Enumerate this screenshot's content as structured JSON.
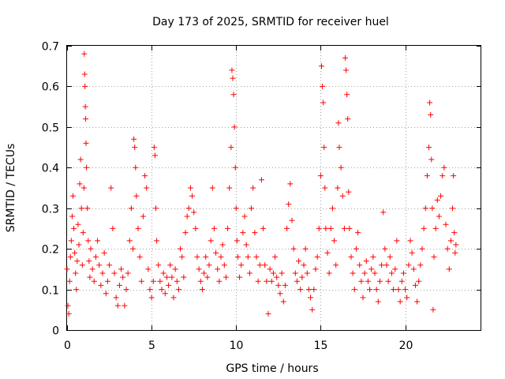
{
  "chart_data": {
    "type": "scatter",
    "title": "Day 173 of 2025, SRMTID for receiver huel",
    "xlabel": "GPS time / hours",
    "ylabel": "SRMTID / TECUs",
    "xlim": [
      0,
      24.5
    ],
    "ylim": [
      0,
      0.7
    ],
    "xticks": [
      0,
      5,
      10,
      15,
      20
    ],
    "xtick_labels": [
      "0",
      "5",
      "10",
      "15",
      "20"
    ],
    "yticks": [
      0,
      0.1,
      0.2,
      0.3,
      0.4,
      0.5,
      0.6,
      0.7
    ],
    "ytick_labels": [
      "0",
      "0.1",
      "0.2",
      "0.3",
      "0.4",
      "0.5",
      "0.6",
      "0.7"
    ],
    "grid": true,
    "marker": "+",
    "marker_color": "#ff0000",
    "series": [
      {
        "name": "SRMTID",
        "points": [
          [
            0.0,
            0.15
          ],
          [
            0.05,
            0.06
          ],
          [
            0.1,
            0.04
          ],
          [
            0.15,
            0.12
          ],
          [
            0.2,
            0.18
          ],
          [
            0.25,
            0.22
          ],
          [
            0.3,
            0.28
          ],
          [
            0.35,
            0.33
          ],
          [
            0.4,
            0.25
          ],
          [
            0.45,
            0.19
          ],
          [
            0.5,
            0.14
          ],
          [
            0.55,
            0.1
          ],
          [
            0.6,
            0.17
          ],
          [
            0.65,
            0.26
          ],
          [
            0.7,
            0.21
          ],
          [
            0.75,
            0.36
          ],
          [
            0.8,
            0.42
          ],
          [
            0.85,
            0.3
          ],
          [
            0.9,
            0.16
          ],
          [
            0.95,
            0.24
          ],
          [
            1.0,
            0.35
          ],
          [
            1.02,
            0.68
          ],
          [
            1.04,
            0.63
          ],
          [
            1.06,
            0.6
          ],
          [
            1.08,
            0.55
          ],
          [
            1.1,
            0.52
          ],
          [
            1.12,
            0.46
          ],
          [
            1.15,
            0.4
          ],
          [
            1.2,
            0.3
          ],
          [
            1.25,
            0.22
          ],
          [
            1.3,
            0.17
          ],
          [
            1.35,
            0.13
          ],
          [
            1.4,
            0.2
          ],
          [
            1.5,
            0.15
          ],
          [
            1.6,
            0.12
          ],
          [
            1.7,
            0.18
          ],
          [
            1.8,
            0.22
          ],
          [
            1.9,
            0.16
          ],
          [
            2.0,
            0.11
          ],
          [
            2.1,
            0.14
          ],
          [
            2.2,
            0.19
          ],
          [
            2.3,
            0.09
          ],
          [
            2.4,
            0.12
          ],
          [
            2.5,
            0.16
          ],
          [
            2.6,
            0.35
          ],
          [
            2.7,
            0.25
          ],
          [
            2.8,
            0.14
          ],
          [
            2.9,
            0.08
          ],
          [
            3.0,
            0.06
          ],
          [
            3.1,
            0.11
          ],
          [
            3.2,
            0.15
          ],
          [
            3.3,
            0.13
          ],
          [
            3.4,
            0.06
          ],
          [
            3.5,
            0.1
          ],
          [
            3.6,
            0.14
          ],
          [
            3.7,
            0.22
          ],
          [
            3.8,
            0.3
          ],
          [
            3.9,
            0.2
          ],
          [
            3.95,
            0.47
          ],
          [
            4.0,
            0.45
          ],
          [
            4.05,
            0.4
          ],
          [
            4.1,
            0.33
          ],
          [
            4.2,
            0.25
          ],
          [
            4.3,
            0.18
          ],
          [
            4.4,
            0.12
          ],
          [
            4.5,
            0.28
          ],
          [
            4.6,
            0.38
          ],
          [
            4.7,
            0.35
          ],
          [
            4.8,
            0.15
          ],
          [
            4.9,
            0.1
          ],
          [
            5.0,
            0.08
          ],
          [
            5.1,
            0.12
          ],
          [
            5.15,
            0.45
          ],
          [
            5.2,
            0.43
          ],
          [
            5.25,
            0.3
          ],
          [
            5.3,
            0.22
          ],
          [
            5.4,
            0.16
          ],
          [
            5.5,
            0.12
          ],
          [
            5.6,
            0.1
          ],
          [
            5.7,
            0.14
          ],
          [
            5.8,
            0.09
          ],
          [
            5.9,
            0.13
          ],
          [
            6.0,
            0.11
          ],
          [
            6.1,
            0.16
          ],
          [
            6.2,
            0.13
          ],
          [
            6.3,
            0.08
          ],
          [
            6.4,
            0.15
          ],
          [
            6.5,
            0.12
          ],
          [
            6.6,
            0.1
          ],
          [
            6.7,
            0.2
          ],
          [
            6.8,
            0.18
          ],
          [
            6.9,
            0.13
          ],
          [
            7.0,
            0.24
          ],
          [
            7.1,
            0.28
          ],
          [
            7.2,
            0.3
          ],
          [
            7.3,
            0.35
          ],
          [
            7.4,
            0.33
          ],
          [
            7.5,
            0.29
          ],
          [
            7.6,
            0.25
          ],
          [
            7.7,
            0.18
          ],
          [
            7.8,
            0.15
          ],
          [
            7.9,
            0.12
          ],
          [
            8.0,
            0.1
          ],
          [
            8.1,
            0.14
          ],
          [
            8.2,
            0.18
          ],
          [
            8.3,
            0.13
          ],
          [
            8.4,
            0.16
          ],
          [
            8.5,
            0.22
          ],
          [
            8.6,
            0.35
          ],
          [
            8.7,
            0.25
          ],
          [
            8.8,
            0.19
          ],
          [
            8.9,
            0.15
          ],
          [
            9.0,
            0.12
          ],
          [
            9.1,
            0.18
          ],
          [
            9.2,
            0.21
          ],
          [
            9.3,
            0.16
          ],
          [
            9.4,
            0.13
          ],
          [
            9.5,
            0.25
          ],
          [
            9.6,
            0.35
          ],
          [
            9.7,
            0.45
          ],
          [
            9.75,
            0.64
          ],
          [
            9.8,
            0.62
          ],
          [
            9.85,
            0.58
          ],
          [
            9.9,
            0.5
          ],
          [
            9.95,
            0.4
          ],
          [
            10.0,
            0.3
          ],
          [
            10.05,
            0.22
          ],
          [
            10.1,
            0.18
          ],
          [
            10.2,
            0.13
          ],
          [
            10.3,
            0.16
          ],
          [
            10.4,
            0.24
          ],
          [
            10.5,
            0.28
          ],
          [
            10.6,
            0.21
          ],
          [
            10.7,
            0.18
          ],
          [
            10.8,
            0.14
          ],
          [
            10.9,
            0.3
          ],
          [
            11.0,
            0.35
          ],
          [
            11.1,
            0.24
          ],
          [
            11.2,
            0.18
          ],
          [
            11.3,
            0.12
          ],
          [
            11.4,
            0.16
          ],
          [
            11.5,
            0.37
          ],
          [
            11.6,
            0.25
          ],
          [
            11.7,
            0.16
          ],
          [
            11.8,
            0.12
          ],
          [
            11.9,
            0.04
          ],
          [
            12.0,
            0.15
          ],
          [
            12.1,
            0.12
          ],
          [
            12.2,
            0.14
          ],
          [
            12.3,
            0.18
          ],
          [
            12.4,
            0.13
          ],
          [
            12.5,
            0.11
          ],
          [
            12.6,
            0.09
          ],
          [
            12.7,
            0.14
          ],
          [
            12.8,
            0.07
          ],
          [
            12.9,
            0.11
          ],
          [
            13.0,
            0.25
          ],
          [
            13.1,
            0.31
          ],
          [
            13.2,
            0.36
          ],
          [
            13.3,
            0.27
          ],
          [
            13.4,
            0.2
          ],
          [
            13.5,
            0.14
          ],
          [
            13.6,
            0.12
          ],
          [
            13.7,
            0.17
          ],
          [
            13.8,
            0.1
          ],
          [
            13.9,
            0.13
          ],
          [
            14.0,
            0.16
          ],
          [
            14.1,
            0.2
          ],
          [
            14.2,
            0.14
          ],
          [
            14.3,
            0.1
          ],
          [
            14.4,
            0.08
          ],
          [
            14.5,
            0.05
          ],
          [
            14.6,
            0.1
          ],
          [
            14.7,
            0.15
          ],
          [
            14.8,
            0.18
          ],
          [
            14.9,
            0.25
          ],
          [
            15.0,
            0.38
          ],
          [
            15.05,
            0.65
          ],
          [
            15.1,
            0.6
          ],
          [
            15.15,
            0.56
          ],
          [
            15.2,
            0.45
          ],
          [
            15.25,
            0.35
          ],
          [
            15.3,
            0.25
          ],
          [
            15.4,
            0.19
          ],
          [
            15.5,
            0.14
          ],
          [
            15.6,
            0.25
          ],
          [
            15.7,
            0.3
          ],
          [
            15.8,
            0.22
          ],
          [
            15.9,
            0.16
          ],
          [
            16.0,
            0.35
          ],
          [
            16.05,
            0.51
          ],
          [
            16.1,
            0.45
          ],
          [
            16.2,
            0.4
          ],
          [
            16.3,
            0.33
          ],
          [
            16.4,
            0.25
          ],
          [
            16.45,
            0.67
          ],
          [
            16.5,
            0.64
          ],
          [
            16.55,
            0.58
          ],
          [
            16.6,
            0.52
          ],
          [
            16.65,
            0.34
          ],
          [
            16.7,
            0.25
          ],
          [
            16.8,
            0.18
          ],
          [
            16.9,
            0.14
          ],
          [
            17.0,
            0.1
          ],
          [
            17.1,
            0.2
          ],
          [
            17.2,
            0.24
          ],
          [
            17.3,
            0.16
          ],
          [
            17.4,
            0.12
          ],
          [
            17.5,
            0.08
          ],
          [
            17.6,
            0.14
          ],
          [
            17.7,
            0.17
          ],
          [
            17.8,
            0.12
          ],
          [
            17.9,
            0.1
          ],
          [
            18.0,
            0.15
          ],
          [
            18.1,
            0.18
          ],
          [
            18.2,
            0.14
          ],
          [
            18.3,
            0.1
          ],
          [
            18.4,
            0.07
          ],
          [
            18.5,
            0.12
          ],
          [
            18.6,
            0.16
          ],
          [
            18.7,
            0.29
          ],
          [
            18.8,
            0.2
          ],
          [
            18.9,
            0.16
          ],
          [
            19.0,
            0.12
          ],
          [
            19.1,
            0.18
          ],
          [
            19.2,
            0.14
          ],
          [
            19.3,
            0.1
          ],
          [
            19.4,
            0.15
          ],
          [
            19.5,
            0.22
          ],
          [
            19.6,
            0.1
          ],
          [
            19.7,
            0.07
          ],
          [
            19.8,
            0.12
          ],
          [
            19.9,
            0.14
          ],
          [
            20.0,
            0.1
          ],
          [
            20.1,
            0.08
          ],
          [
            20.2,
            0.16
          ],
          [
            20.3,
            0.22
          ],
          [
            20.4,
            0.19
          ],
          [
            20.5,
            0.15
          ],
          [
            20.6,
            0.11
          ],
          [
            20.7,
            0.07
          ],
          [
            20.8,
            0.12
          ],
          [
            20.9,
            0.16
          ],
          [
            21.0,
            0.2
          ],
          [
            21.1,
            0.25
          ],
          [
            21.2,
            0.3
          ],
          [
            21.3,
            0.38
          ],
          [
            21.4,
            0.45
          ],
          [
            21.45,
            0.56
          ],
          [
            21.5,
            0.53
          ],
          [
            21.55,
            0.42
          ],
          [
            21.6,
            0.3
          ],
          [
            21.65,
            0.05
          ],
          [
            21.7,
            0.18
          ],
          [
            21.8,
            0.25
          ],
          [
            21.9,
            0.32
          ],
          [
            22.0,
            0.28
          ],
          [
            22.1,
            0.33
          ],
          [
            22.2,
            0.38
          ],
          [
            22.3,
            0.4
          ],
          [
            22.4,
            0.26
          ],
          [
            22.5,
            0.2
          ],
          [
            22.6,
            0.15
          ],
          [
            22.7,
            0.22
          ],
          [
            22.8,
            0.3
          ],
          [
            22.85,
            0.38
          ],
          [
            22.9,
            0.24
          ],
          [
            22.95,
            0.19
          ],
          [
            23.0,
            0.21
          ]
        ]
      }
    ]
  }
}
